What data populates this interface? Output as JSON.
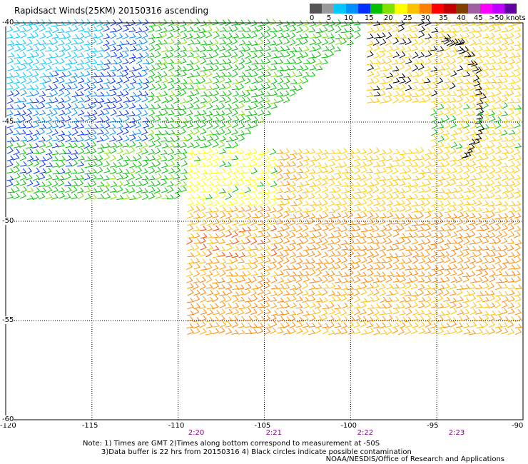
{
  "title": "Rapidsact Winds(25KM) 20150316 ascending",
  "legend": {
    "colors": [
      "#555555",
      "#999999",
      "#00c8ff",
      "#0090ff",
      "#0030ff",
      "#00c000",
      "#80e000",
      "#ffff00",
      "#ffc000",
      "#ff8000",
      "#ff0000",
      "#c00000",
      "#804000",
      "#a060a0",
      "#ff00ff",
      "#c000ff",
      "#6000a0"
    ],
    "labels": [
      "0",
      "5",
      "10",
      "15",
      "20",
      "25",
      "30",
      "35",
      "40",
      "45",
      ">50 knots"
    ]
  },
  "x_axis": {
    "ticks": [
      "-120",
      "-115",
      "-110",
      "-105",
      "-100",
      "-95",
      "-90"
    ],
    "values": [
      -120,
      -115,
      -110,
      -105,
      -100,
      -95,
      -90
    ]
  },
  "y_axis": {
    "ticks": [
      "-40",
      "-45",
      "-50",
      "-55",
      "-60"
    ],
    "values": [
      -40,
      -45,
      -50,
      -55,
      -60
    ]
  },
  "times": [
    {
      "label": "2:20",
      "lon": -109
    },
    {
      "label": "2:21",
      "lon": -104.5
    },
    {
      "label": "2:22",
      "lon": -99.2
    },
    {
      "label": "2:23",
      "lon": -93.9
    }
  ],
  "notes": [
    "Note: 1) Times are GMT 2)Times along bottom correspond to measurement at -50S",
    "3)Data buffer is 22 hrs from 20150316 4) Black circles indicate possible contamination"
  ],
  "credit": "NOAA/NESDIS/Office of Research and Applications"
}
